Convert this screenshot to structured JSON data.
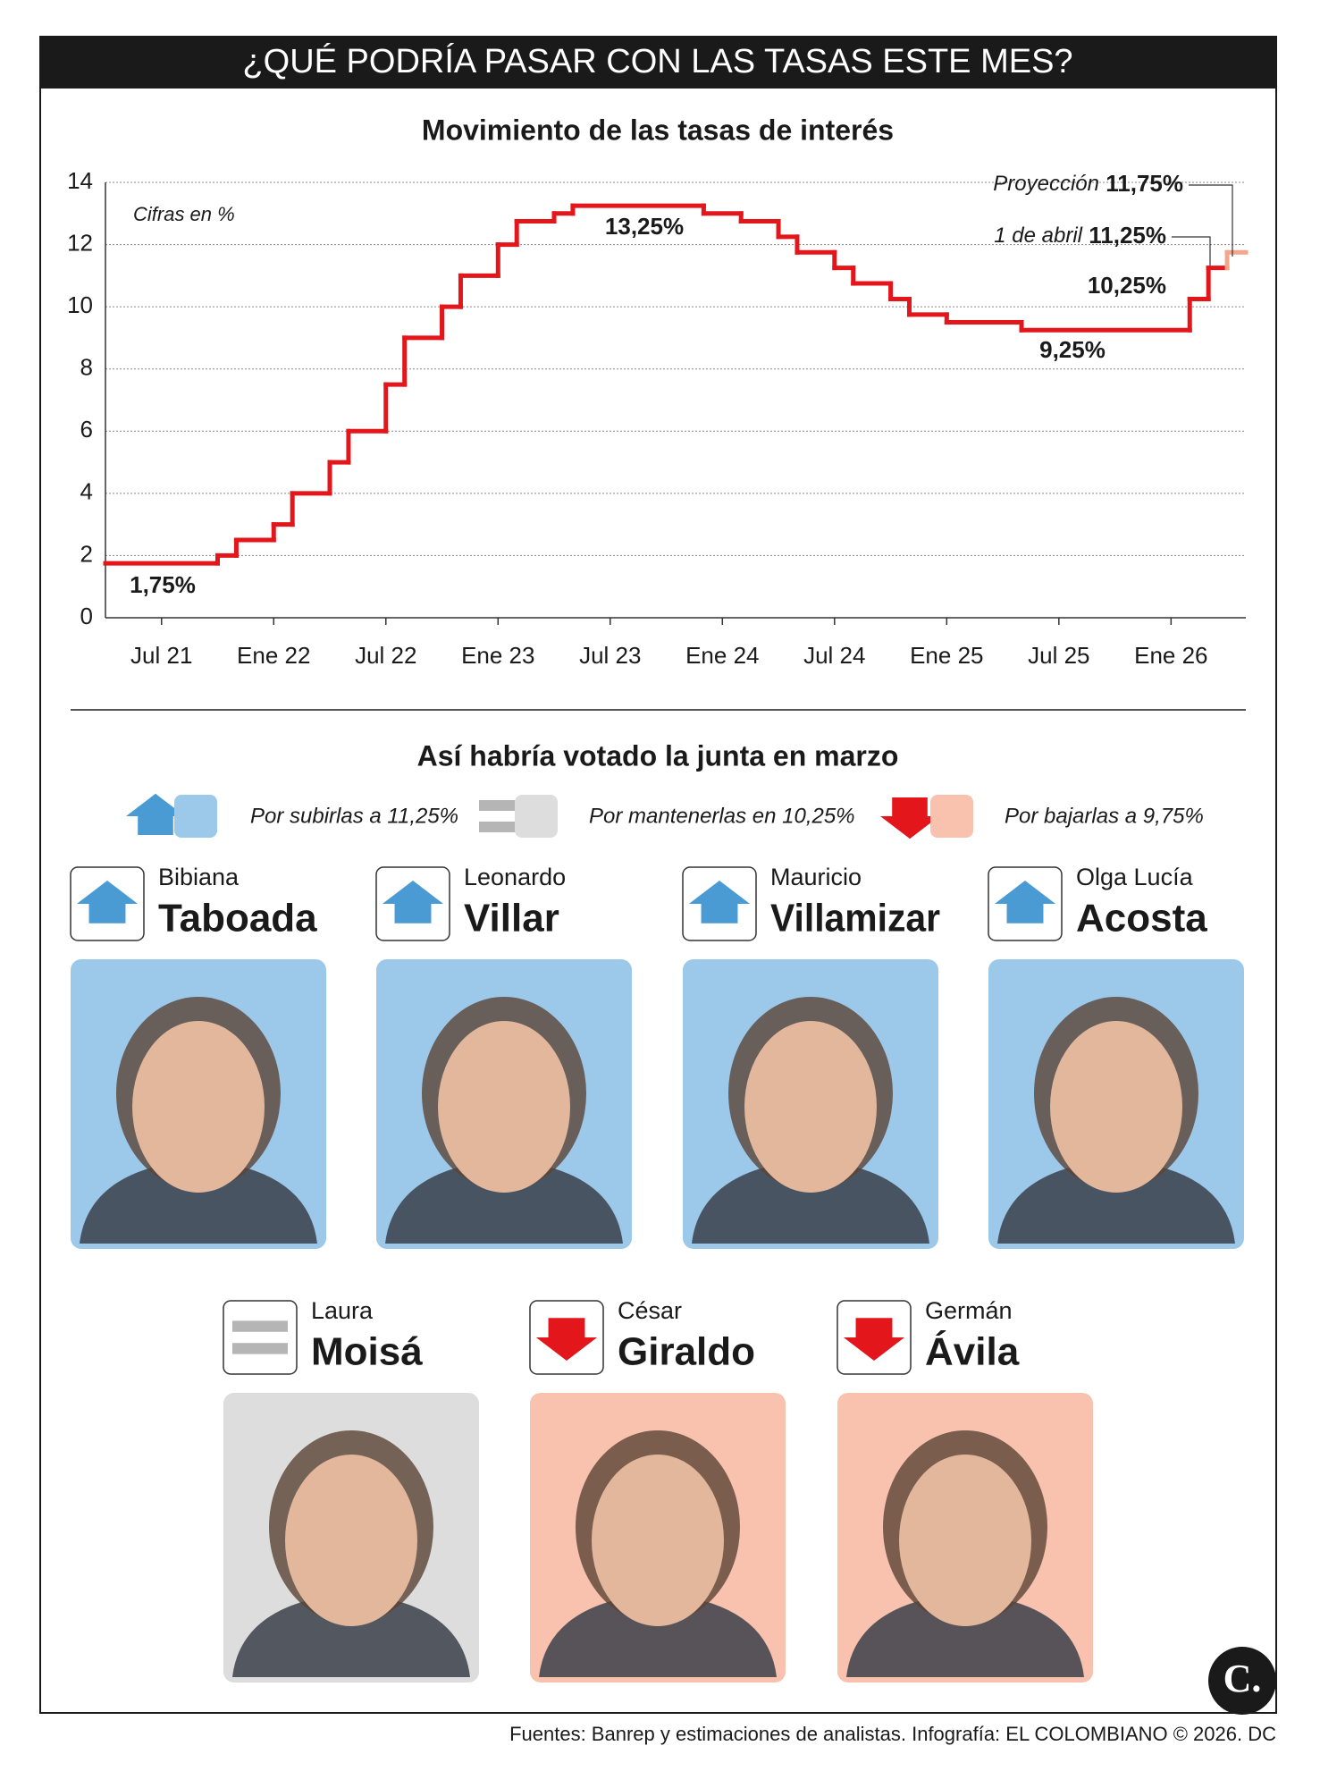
{
  "header": {
    "title": "¿QUÉ PODRÍA PASAR CON LAS TASAS ESTE MES?"
  },
  "chart_data": {
    "type": "line",
    "step": true,
    "title": "Movimiento de las tasas de interés",
    "subtitle": "Cifras en %",
    "xlim": [
      "2021-04",
      "2026-05"
    ],
    "xticks": [
      {
        "value": "2021-07",
        "label": "Jul 21"
      },
      {
        "value": "2022-01",
        "label": "Ene 22"
      },
      {
        "value": "2022-07",
        "label": "Jul 22"
      },
      {
        "value": "2023-01",
        "label": "Ene 23"
      },
      {
        "value": "2023-07",
        "label": "Jul 23"
      },
      {
        "value": "2024-01",
        "label": "Ene 24"
      },
      {
        "value": "2024-07",
        "label": "Jul 24"
      },
      {
        "value": "2025-01",
        "label": "Ene 25"
      },
      {
        "value": "2025-07",
        "label": "Jul 25"
      },
      {
        "value": "2026-01",
        "label": "Ene 26"
      }
    ],
    "ylim": [
      0,
      14
    ],
    "yticks": [
      0,
      2,
      4,
      6,
      8,
      10,
      12,
      14
    ],
    "grid": true,
    "series": [
      {
        "color": "#e3161b",
        "x": [
          "2021-04",
          "2021-10",
          "2021-11",
          "2022-01",
          "2022-02",
          "2022-04",
          "2022-05",
          "2022-07",
          "2022-08",
          "2022-10",
          "2022-11",
          "2023-01",
          "2023-02",
          "2023-04",
          "2023-05",
          "2023-12",
          "2024-02",
          "2024-04",
          "2024-05",
          "2024-07",
          "2024-08",
          "2024-10",
          "2024-11",
          "2025-01",
          "2025-05",
          "2026-02",
          "2026-03"
        ],
        "values": [
          1.75,
          2,
          2.5,
          3,
          4,
          5,
          6,
          7.5,
          9,
          10,
          11,
          12,
          12.75,
          13,
          13.25,
          13,
          12.75,
          12.25,
          11.75,
          11.25,
          10.75,
          10.25,
          9.75,
          9.5,
          9.25,
          10.25,
          11.25
        ]
      },
      {
        "color": "#f4a58a",
        "x": [
          "2026-04"
        ],
        "values": [
          11.75
        ]
      }
    ],
    "annotations": [
      {
        "text": "Proyección",
        "value": "11,75%"
      },
      {
        "text": "1 de abril",
        "value": "11,25%"
      },
      {
        "value": "13,25%"
      },
      {
        "value": "1,75%"
      },
      {
        "value": "9,25%"
      },
      {
        "value": "10,25%"
      }
    ]
  },
  "votes": {
    "title": "Así habría votado la junta en marzo",
    "options": [
      {
        "vote": "up",
        "label": "Por subirlas a 11,25%",
        "color": "#9cc8ea"
      },
      {
        "vote": "same",
        "label": "Por mantenerlas en 10,25%",
        "color": "#dddddd"
      },
      {
        "vote": "down",
        "label": "Por bajarlas a 9,75%",
        "color": "#f8c2ae"
      }
    ],
    "members": [
      {
        "first": "Bibiana",
        "last": "Taboada",
        "vote": "up"
      },
      {
        "first": "Leonardo",
        "last": "Villar",
        "vote": "up"
      },
      {
        "first": "Mauricio",
        "last": "Villamizar",
        "vote": "up"
      },
      {
        "first": "Olga Lucía",
        "last": "Acosta",
        "vote": "up"
      },
      {
        "first": "Laura",
        "last": "Moisá",
        "vote": "same"
      },
      {
        "first": "César",
        "last": "Giraldo",
        "vote": "down"
      },
      {
        "first": "Germán",
        "last": "Ávila",
        "vote": "down"
      }
    ]
  },
  "logo": "C.",
  "source": "Fuentes: Banrep y estimaciones de analistas. Infografía: EL COLOMBIANO © 2026. DC"
}
